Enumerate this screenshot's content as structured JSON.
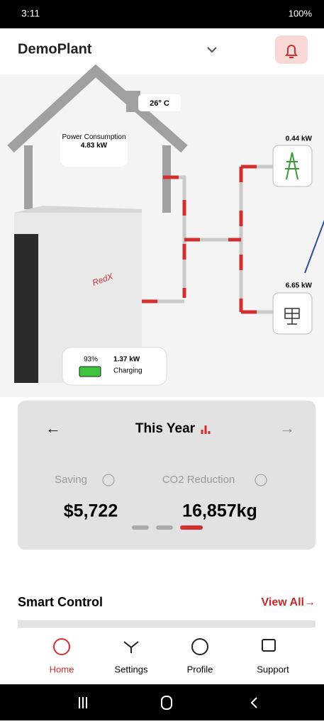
{
  "status_bar": {
    "time": "3:11",
    "battery": "100%"
  },
  "header": {
    "title": "DemoPlant"
  },
  "energy": {
    "temperature": "26° C",
    "consumption_label": "Power Consumption",
    "consumption_value": "4.83 kW",
    "grid_value": "0.44 kW",
    "solar_value": "6.65 kW",
    "battery_percent": "93%",
    "battery_power": "1.37 kW",
    "battery_state": "Charging"
  },
  "stats": {
    "period": "This Year",
    "saving_label": "Saving",
    "saving_value": "$5,722",
    "co2_label": "CO2 Reduction",
    "co2_value": "16,857kg"
  },
  "smart_control": {
    "title": "Smart Control",
    "view_all": "View All→"
  },
  "nav": {
    "items": [
      "Home",
      "Settings",
      "Profile",
      "Support"
    ]
  }
}
